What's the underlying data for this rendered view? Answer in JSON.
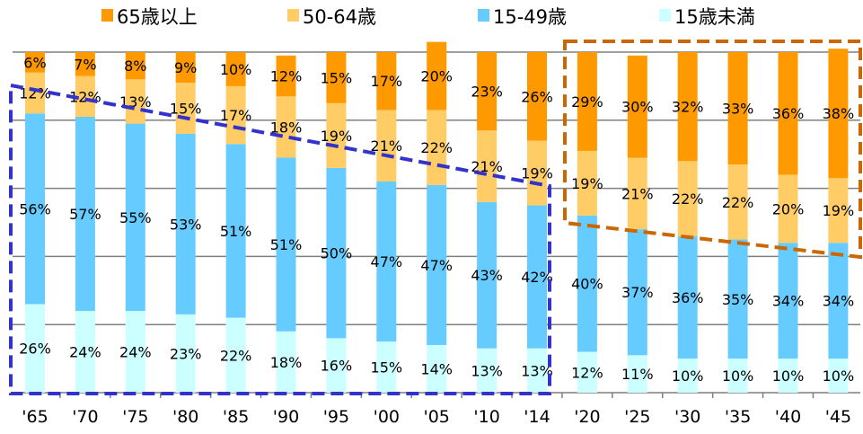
{
  "chart_data": {
    "type": "bar",
    "stacked": true,
    "percent_stacked": true,
    "categories": [
      "'65",
      "'70",
      "'75",
      "'80",
      "'85",
      "'90",
      "'95",
      "'00",
      "'05",
      "'10",
      "'14",
      "'20",
      "'25",
      "'30",
      "'35",
      "'40",
      "'45"
    ],
    "series": [
      {
        "name": "15歳未満",
        "color": "#ccffff",
        "values": [
          26,
          24,
          24,
          23,
          22,
          18,
          16,
          15,
          14,
          13,
          13,
          12,
          11,
          10,
          10,
          10,
          10
        ]
      },
      {
        "name": "15-49歳",
        "color": "#66ccff",
        "values": [
          56,
          57,
          55,
          53,
          51,
          51,
          50,
          47,
          47,
          43,
          42,
          40,
          37,
          36,
          35,
          34,
          34
        ]
      },
      {
        "name": "50-64歳",
        "color": "#ffcc66",
        "values": [
          12,
          12,
          13,
          15,
          17,
          18,
          19,
          21,
          22,
          21,
          19,
          19,
          21,
          22,
          22,
          20,
          19
        ]
      },
      {
        "name": "65歳以上",
        "color": "#ff9900",
        "values": [
          6,
          7,
          8,
          9,
          10,
          12,
          15,
          17,
          20,
          23,
          26,
          29,
          30,
          32,
          33,
          36,
          38
        ]
      }
    ],
    "legend_order": [
      "65歳以上",
      "50-64歳",
      "15-49歳",
      "15歳未満"
    ],
    "legend_placement": "top",
    "grid": true,
    "ylim": [
      0,
      100
    ],
    "annotations": [
      {
        "type": "dashed-outline",
        "color": "#3333cc",
        "covers": "'65-'14"
      },
      {
        "type": "dashed-outline",
        "color": "#cc6600",
        "covers": "'20-'45"
      }
    ]
  }
}
